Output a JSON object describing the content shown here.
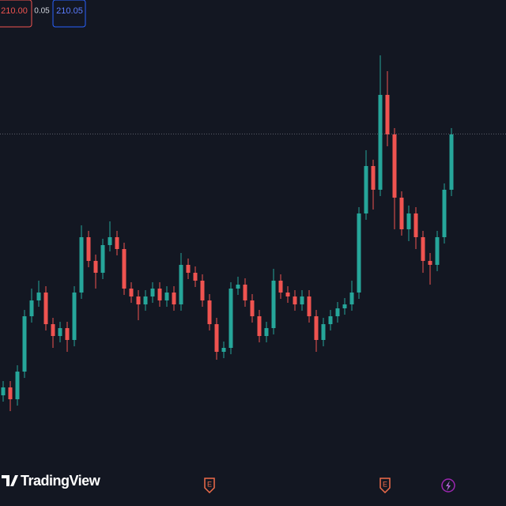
{
  "chart_data": {
    "type": "candlestick",
    "up_color": "#26a69a",
    "down_color": "#ef5350",
    "ylim": [
      163,
      227
    ],
    "open": [
      177.0,
      178.0,
      176.5,
      180.0,
      187.0,
      189.0,
      190.0,
      186.0,
      184.5,
      185.5,
      184.0,
      190.0,
      197.0,
      194.0,
      192.5,
      196.0,
      197.0,
      195.5,
      190.5,
      189.5,
      188.5,
      189.5,
      190.5,
      189.0,
      190.0,
      188.5,
      193.5,
      192.5,
      191.5,
      189.0,
      186.0,
      182.5,
      183.0,
      190.5,
      191.0,
      189.0,
      187.0,
      184.5,
      185.5,
      191.5,
      190.0,
      189.5,
      188.5,
      189.5,
      187.0,
      184.0,
      186.0,
      187.0,
      188.0,
      188.5,
      190.0,
      200.0,
      206.0,
      203.0,
      215.0,
      210.0,
      202.0,
      198.0,
      200.0,
      197.0,
      194.0,
      193.5,
      197.0,
      203.0
    ],
    "high": [
      178.8,
      178.8,
      180.8,
      187.8,
      190.5,
      191.5,
      190.8,
      186.8,
      186.3,
      186.3,
      190.8,
      198.5,
      197.8,
      194.8,
      196.8,
      199.0,
      197.8,
      196.3,
      191.3,
      190.3,
      190.3,
      191.3,
      191.3,
      190.8,
      190.8,
      195.0,
      194.3,
      193.3,
      192.3,
      189.8,
      186.8,
      183.8,
      191.3,
      192.0,
      191.8,
      189.8,
      187.8,
      186.3,
      193.0,
      192.3,
      190.8,
      190.3,
      190.3,
      190.3,
      187.8,
      186.8,
      187.8,
      188.8,
      189.3,
      191.5,
      200.8,
      208.0,
      206.8,
      220.0,
      218.0,
      210.8,
      202.8,
      201.0,
      200.8,
      197.8,
      195.0,
      197.8,
      203.8,
      210.8
    ],
    "low": [
      176.2,
      175.0,
      175.7,
      179.2,
      186.2,
      188.2,
      185.2,
      183.0,
      183.7,
      182.5,
      183.2,
      189.2,
      193.2,
      190.5,
      191.7,
      195.2,
      194.7,
      189.7,
      188.7,
      186.5,
      187.7,
      188.7,
      188.2,
      188.2,
      187.7,
      187.7,
      191.7,
      190.7,
      188.2,
      185.2,
      181.5,
      181.7,
      182.2,
      189.7,
      188.2,
      186.2,
      183.7,
      183.7,
      184.7,
      189.2,
      188.7,
      187.7,
      187.7,
      186.2,
      182.5,
      183.2,
      185.2,
      186.2,
      187.2,
      187.7,
      189.2,
      199.2,
      200.5,
      202.2,
      208.5,
      198.0,
      197.2,
      196.5,
      195.5,
      192.5,
      191.0,
      192.7,
      196.2,
      202.2
    ],
    "close": [
      178.0,
      176.5,
      180.0,
      187.0,
      189.0,
      190.0,
      186.0,
      184.5,
      185.5,
      184.0,
      190.0,
      197.0,
      194.0,
      192.5,
      196.0,
      197.0,
      195.5,
      190.5,
      189.5,
      188.5,
      189.5,
      190.5,
      189.0,
      190.0,
      188.5,
      193.5,
      192.5,
      191.5,
      189.0,
      186.0,
      182.5,
      183.0,
      190.5,
      191.0,
      189.0,
      187.0,
      184.5,
      185.5,
      191.5,
      190.0,
      189.5,
      188.5,
      189.5,
      187.0,
      184.0,
      186.0,
      187.0,
      188.0,
      188.5,
      190.0,
      200.0,
      206.0,
      203.0,
      215.0,
      210.0,
      202.0,
      198.0,
      200.0,
      197.0,
      194.0,
      193.5,
      197.0,
      203.0,
      210.0
    ],
    "bid": {
      "value": 210,
      "label": "210.00"
    },
    "spread": 0.05,
    "ask": {
      "value": 210.05,
      "label": "210.05"
    },
    "events": [
      "E",
      "E"
    ],
    "brand": "TradingView"
  }
}
